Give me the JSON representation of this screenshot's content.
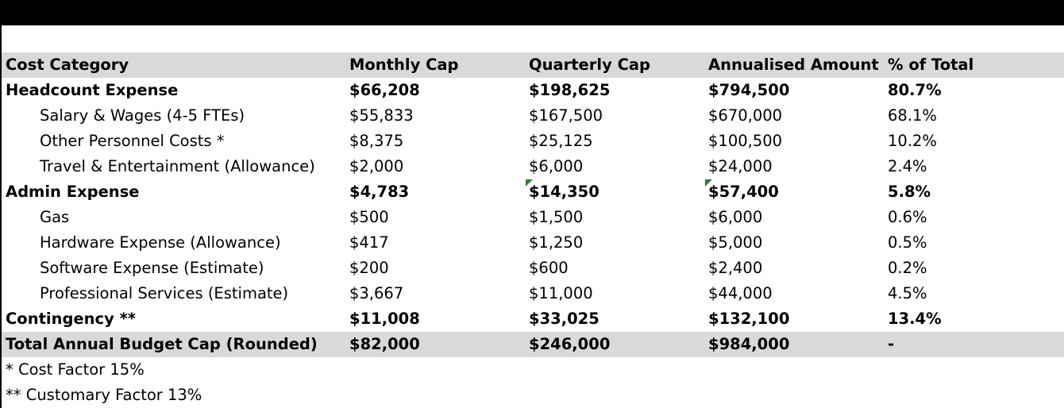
{
  "header": [
    "Cost Category",
    "Monthly Cap",
    "Quarterly Cap",
    "Annualised Amount",
    "% of Total"
  ],
  "rows": [
    {
      "category": "Headcount Expense",
      "monthly": "$66,208",
      "quarterly": "$198,625",
      "annual": "$794,500",
      "pct": "80.7%"
    },
    {
      "category": "Salary & Wages (4-5 FTEs)",
      "monthly": "$55,833",
      "quarterly": "$167,500",
      "annual": "$670,000",
      "pct": "68.1%"
    },
    {
      "category": "Other Personnel Costs *",
      "monthly": "$8,375",
      "quarterly": "$25,125",
      "annual": "$100,500",
      "pct": "10.2%"
    },
    {
      "category": "Travel & Entertainment (Allowance)",
      "monthly": "$2,000",
      "quarterly": "$6,000",
      "annual": "$24,000",
      "pct": "2.4%"
    },
    {
      "category": "Admin Expense",
      "monthly": "$4,783",
      "quarterly": "$14,350",
      "annual": "$57,400",
      "pct": "5.8%"
    },
    {
      "category": "Gas",
      "monthly": "$500",
      "quarterly": "$1,500",
      "annual": "$6,000",
      "pct": "0.6%"
    },
    {
      "category": "Hardware Expense (Allowance)",
      "monthly": "$417",
      "quarterly": "$1,250",
      "annual": "$5,000",
      "pct": "0.5%"
    },
    {
      "category": "Software Expense (Estimate)",
      "monthly": "$200",
      "quarterly": "$600",
      "annual": "$2,400",
      "pct": "0.2%"
    },
    {
      "category": "Professional Services (Estimate)",
      "monthly": "$3,667",
      "quarterly": "$11,000",
      "annual": "$44,000",
      "pct": "4.5%"
    },
    {
      "category": "Contingency **",
      "monthly": "$11,008",
      "quarterly": "$33,025",
      "annual": "$132,100",
      "pct": "13.4%"
    },
    {
      "category": "Total Annual Budget Cap (Rounded)",
      "monthly": "$82,000",
      "quarterly": "$246,000",
      "annual": "$984,000",
      "pct": "-"
    }
  ],
  "notes": [
    "* Cost Factor 15%",
    "** Customary Factor 13%"
  ],
  "colors": {
    "header_bg": "#d9d9d9",
    "comment_marker": "#2e7d32",
    "top_bar": "#000000"
  }
}
